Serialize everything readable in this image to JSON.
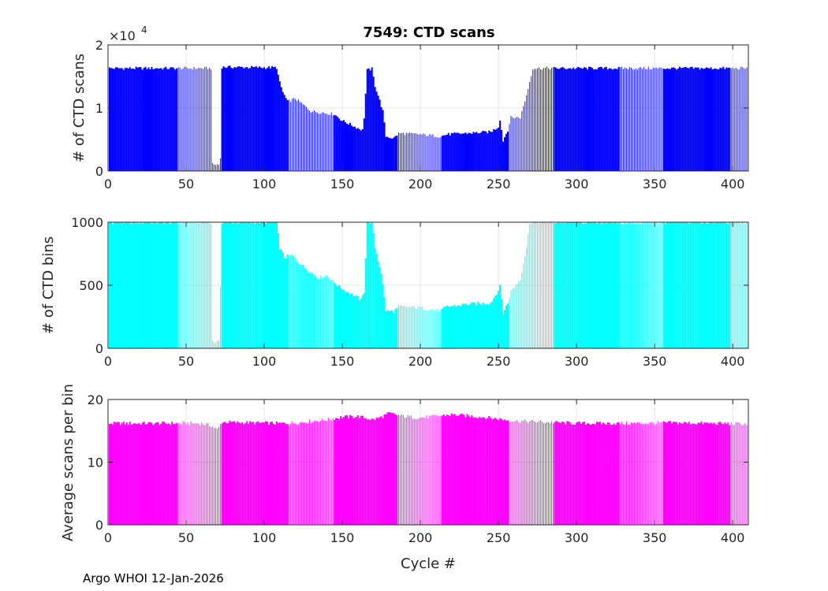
{
  "footer": "Argo WHOI 12-Jan-2026",
  "colors": {
    "scans": "#0000FF",
    "bins": "#00FFFF",
    "avg": "#FF00FF",
    "grid": "#E6E6E6",
    "axis": "#262626"
  },
  "chart_data": [
    {
      "type": "bar",
      "id": "scans",
      "title": "7549: CTD scans",
      "ylabel": "# of CTD scans",
      "xlabel": "",
      "xlim": [
        0,
        410
      ],
      "ylim": [
        0,
        20000
      ],
      "xticks": [
        "0",
        "50",
        "100",
        "150",
        "200",
        "250",
        "300",
        "350",
        "400"
      ],
      "yticks": [
        "0",
        "1",
        "2"
      ],
      "ytick_values": [
        0,
        10000,
        20000
      ],
      "exponent_label": "×10",
      "exponent_power": "4",
      "grid": true,
      "color": "#0000FF",
      "cycles": [
        1,
        410
      ],
      "profile": [
        [
          1,
          16300
        ],
        [
          44,
          16300
        ],
        [
          45,
          16300
        ],
        [
          66,
          16300
        ],
        [
          67,
          1000
        ],
        [
          71,
          1000
        ],
        [
          72,
          2000
        ],
        [
          73,
          16500
        ],
        [
          108,
          16400
        ],
        [
          110,
          14000
        ],
        [
          112,
          12500
        ],
        [
          115,
          11000
        ],
        [
          120,
          11500
        ],
        [
          130,
          9500
        ],
        [
          145,
          9000
        ],
        [
          150,
          8000
        ],
        [
          160,
          6800
        ],
        [
          163,
          6500
        ],
        [
          164,
          8500
        ],
        [
          166,
          16000
        ],
        [
          169,
          16200
        ],
        [
          171,
          13500
        ],
        [
          173,
          12000
        ],
        [
          176,
          9500
        ],
        [
          178,
          5500
        ],
        [
          183,
          5200
        ],
        [
          186,
          6000
        ],
        [
          200,
          5800
        ],
        [
          213,
          5500
        ],
        [
          217,
          5800
        ],
        [
          230,
          6000
        ],
        [
          245,
          6200
        ],
        [
          250,
          7000
        ],
        [
          251,
          8200
        ],
        [
          253,
          4800
        ],
        [
          256,
          6500
        ],
        [
          258,
          8500
        ],
        [
          264,
          8500
        ],
        [
          268,
          12000
        ],
        [
          272,
          16300
        ],
        [
          410,
          16300
        ]
      ],
      "gaps": [
        [
          45,
          72
        ],
        [
          116,
          144
        ],
        [
          186,
          213
        ],
        [
          257,
          285
        ],
        [
          328,
          355
        ],
        [
          399,
          410
        ]
      ],
      "noise": 250
    },
    {
      "type": "bar",
      "id": "bins",
      "title": "",
      "ylabel": "# of CTD bins",
      "xlabel": "",
      "xlim": [
        0,
        410
      ],
      "ylim": [
        0,
        1000
      ],
      "xticks": [
        "0",
        "50",
        "100",
        "150",
        "200",
        "250",
        "300",
        "350",
        "400"
      ],
      "yticks": [
        "0",
        "500",
        "1000"
      ],
      "ytick_values": [
        0,
        500,
        1000
      ],
      "grid": true,
      "color": "#00FFFF",
      "cycles": [
        1,
        410
      ],
      "profile": [
        [
          1,
          1000
        ],
        [
          66,
          1000
        ],
        [
          67,
          50
        ],
        [
          71,
          50
        ],
        [
          72,
          500
        ],
        [
          73,
          1000
        ],
        [
          108,
          1000
        ],
        [
          110,
          800
        ],
        [
          113,
          720
        ],
        [
          118,
          740
        ],
        [
          125,
          650
        ],
        [
          135,
          560
        ],
        [
          140,
          580
        ],
        [
          145,
          520
        ],
        [
          150,
          470
        ],
        [
          160,
          400
        ],
        [
          162,
          380
        ],
        [
          164,
          450
        ],
        [
          166,
          1000
        ],
        [
          169,
          1000
        ],
        [
          171,
          800
        ],
        [
          175,
          600
        ],
        [
          178,
          300
        ],
        [
          183,
          290
        ],
        [
          186,
          330
        ],
        [
          200,
          320
        ],
        [
          213,
          300
        ],
        [
          217,
          330
        ],
        [
          230,
          350
        ],
        [
          245,
          360
        ],
        [
          250,
          460
        ],
        [
          251,
          490
        ],
        [
          253,
          280
        ],
        [
          256,
          360
        ],
        [
          258,
          450
        ],
        [
          264,
          550
        ],
        [
          268,
          800
        ],
        [
          270,
          1000
        ],
        [
          410,
          1000
        ]
      ],
      "gaps": [
        [
          45,
          72
        ],
        [
          116,
          144
        ],
        [
          186,
          213
        ],
        [
          257,
          285
        ],
        [
          328,
          355
        ],
        [
          399,
          410
        ]
      ],
      "noise": 15
    },
    {
      "type": "bar",
      "id": "avg",
      "title": "",
      "ylabel": "Average scans per bin",
      "xlabel": "Cycle #",
      "xlim": [
        0,
        410
      ],
      "ylim": [
        0,
        20
      ],
      "xticks": [
        "0",
        "50",
        "100",
        "150",
        "200",
        "250",
        "300",
        "350",
        "400"
      ],
      "yticks": [
        "0",
        "10",
        "20"
      ],
      "ytick_values": [
        0,
        10,
        20
      ],
      "grid": true,
      "color": "#FF00FF",
      "cycles": [
        1,
        410
      ],
      "profile": [
        [
          1,
          16.2
        ],
        [
          60,
          16.2
        ],
        [
          66,
          15.8
        ],
        [
          70,
          15.2
        ],
        [
          73,
          16.4
        ],
        [
          110,
          16.2
        ],
        [
          120,
          16.3
        ],
        [
          140,
          16.8
        ],
        [
          150,
          17.2
        ],
        [
          160,
          17.3
        ],
        [
          170,
          16.8
        ],
        [
          175,
          17.2
        ],
        [
          180,
          17.8
        ],
        [
          190,
          17.3
        ],
        [
          200,
          17.1
        ],
        [
          220,
          17.6
        ],
        [
          240,
          17.2
        ],
        [
          260,
          16.6
        ],
        [
          280,
          16.4
        ],
        [
          300,
          16.2
        ],
        [
          330,
          16.2
        ],
        [
          360,
          16.3
        ],
        [
          410,
          16.1
        ]
      ],
      "gaps": [
        [
          45,
          72
        ],
        [
          116,
          144
        ],
        [
          186,
          213
        ],
        [
          257,
          285
        ],
        [
          328,
          355
        ],
        [
          399,
          410
        ]
      ],
      "noise": 0.3
    }
  ]
}
